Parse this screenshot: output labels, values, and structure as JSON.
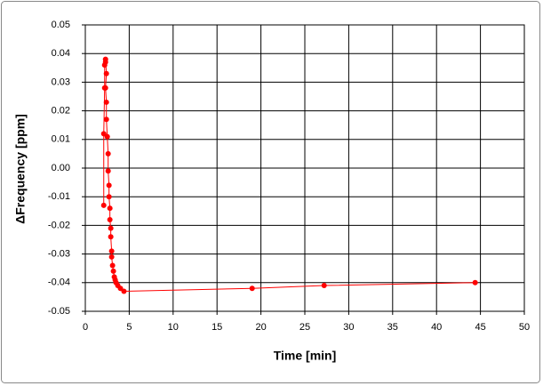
{
  "chart_data": {
    "type": "scatter-line",
    "x_label": "Time [min]",
    "y_label": "ΔFrequency [ppm]",
    "x": [
      2.1,
      2.1,
      2.2,
      2.2,
      2.3,
      2.3,
      2.4,
      2.3,
      2.4,
      2.4,
      2.5,
      2.6,
      2.6,
      2.7,
      2.7,
      2.8,
      2.8,
      2.9,
      2.9,
      3.0,
      3.0,
      3.1,
      3.2,
      3.3,
      3.4,
      3.5,
      3.7,
      4.0,
      4.4,
      19,
      27.2,
      44.4
    ],
    "values": [
      -0.013,
      0.012,
      0.028,
      0.036,
      0.037,
      0.038,
      0.033,
      0.028,
      0.023,
      0.017,
      0.011,
      0.005,
      -0.001,
      -0.006,
      -0.01,
      -0.014,
      -0.018,
      -0.021,
      -0.024,
      -0.029,
      -0.031,
      -0.034,
      -0.036,
      -0.038,
      -0.039,
      -0.04,
      -0.041,
      -0.042,
      -0.043,
      -0.042,
      -0.041,
      -0.04
    ],
    "color": "#ff0000",
    "xlim": [
      0,
      50
    ],
    "xticks": [
      0,
      5,
      10,
      15,
      20,
      25,
      30,
      35,
      40,
      45,
      50
    ],
    "ylim": [
      -0.05,
      0.05
    ],
    "yticks": [
      -0.05,
      -0.04,
      -0.03,
      -0.02,
      -0.01,
      {
        "value": 0,
        "label": "0.00"
      },
      0.01,
      0.02,
      0.03,
      0.04,
      0.05
    ],
    "grid": true
  }
}
